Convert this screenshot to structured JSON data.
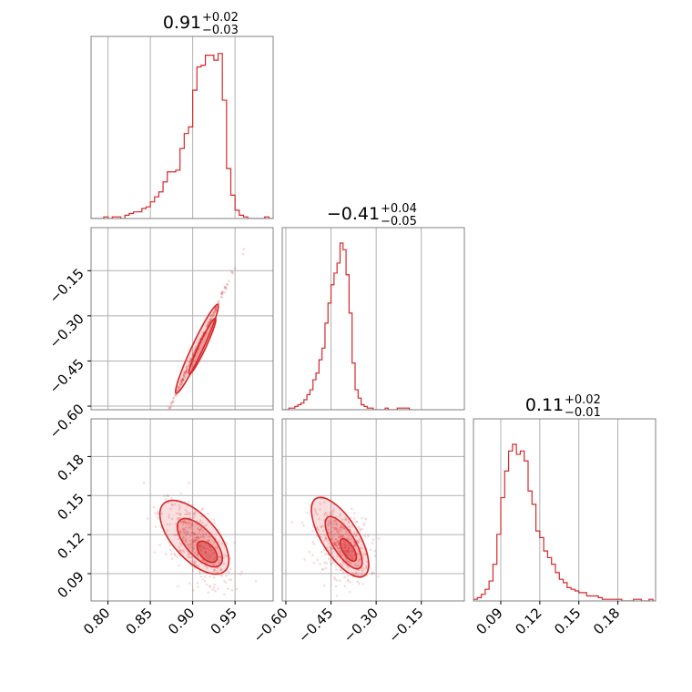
{
  "colors": {
    "accent": "#d62728",
    "grid": "#b0b0b0",
    "frame": "#808080",
    "text": "#000000"
  },
  "chart_data": {
    "type": "corner",
    "parameters": [
      {
        "title_value": "0.91",
        "title_plus": "+0.02",
        "title_minus": "−0.03"
      },
      {
        "title_value": "−0.41",
        "title_plus": "+0.04",
        "title_minus": "−0.05"
      },
      {
        "title_value": "0.11",
        "title_plus": "+0.02",
        "title_minus": "−0.01"
      }
    ],
    "axes": {
      "p0": {
        "range": [
          0.78,
          0.995
        ],
        "ticks": [
          "0.80",
          "0.85",
          "0.90",
          "0.95"
        ],
        "tick_values": [
          0.8,
          0.85,
          0.9,
          0.95
        ]
      },
      "p1": {
        "range": [
          -0.612,
          -0.007
        ],
        "ticks": [
          "−0.60",
          "−0.45",
          "−0.30",
          "−0.15"
        ],
        "tick_values": [
          -0.6,
          -0.45,
          -0.3,
          -0.15
        ]
      },
      "p2": {
        "range": [
          0.069,
          0.209
        ],
        "ticks": [
          "0.09",
          "0.12",
          "0.15",
          "0.18"
        ],
        "tick_values": [
          0.09,
          0.12,
          0.15,
          0.18
        ]
      }
    },
    "grid": true,
    "hist_p0": {
      "edges": [
        0.78,
        0.785,
        0.79,
        0.795,
        0.8,
        0.805,
        0.81,
        0.815,
        0.82,
        0.825,
        0.83,
        0.835,
        0.84,
        0.845,
        0.85,
        0.855,
        0.86,
        0.865,
        0.87,
        0.875,
        0.88,
        0.885,
        0.89,
        0.895,
        0.9,
        0.905,
        0.91,
        0.915,
        0.92,
        0.925,
        0.93,
        0.935,
        0.94,
        0.945,
        0.95,
        0.955,
        0.96,
        0.965,
        0.97,
        0.975,
        0.98,
        0.985,
        0.99,
        0.995
      ],
      "counts": [
        0,
        0,
        0,
        1,
        0,
        1,
        1,
        0,
        2,
        3,
        4,
        4,
        6,
        7,
        10,
        13,
        16,
        22,
        28,
        28,
        29,
        42,
        51,
        55,
        77,
        91,
        92,
        98,
        98,
        95,
        99,
        71,
        30,
        14,
        5,
        2,
        1,
        0,
        0,
        0,
        0,
        1,
        0
      ],
      "max": 100
    },
    "hist_p1": {
      "edges": [
        -0.61,
        -0.6,
        -0.59,
        -0.58,
        -0.57,
        -0.56,
        -0.55,
        -0.54,
        -0.53,
        -0.52,
        -0.51,
        -0.5,
        -0.49,
        -0.48,
        -0.47,
        -0.46,
        -0.45,
        -0.44,
        -0.43,
        -0.42,
        -0.41,
        -0.4,
        -0.39,
        -0.38,
        -0.37,
        -0.36,
        -0.35,
        -0.34,
        -0.33,
        -0.32,
        -0.31,
        -0.3,
        -0.29,
        -0.28,
        -0.27,
        -0.26,
        -0.25,
        -0.24,
        -0.23,
        -0.22,
        -0.21,
        -0.2,
        -0.19,
        -0.18
      ],
      "counts": [
        0,
        0,
        1,
        1,
        2,
        3,
        4,
        6,
        9,
        12,
        18,
        22,
        30,
        37,
        52,
        64,
        75,
        82,
        88,
        100,
        96,
        81,
        58,
        28,
        12,
        7,
        3,
        2,
        1,
        1,
        0,
        0,
        0,
        0,
        1,
        0,
        0,
        0,
        1,
        1,
        1,
        1,
        0
      ],
      "max": 100
    },
    "hist_p2": {
      "edges": [
        0.069,
        0.072,
        0.075,
        0.078,
        0.081,
        0.084,
        0.087,
        0.09,
        0.093,
        0.096,
        0.099,
        0.102,
        0.105,
        0.108,
        0.111,
        0.114,
        0.117,
        0.12,
        0.123,
        0.126,
        0.129,
        0.132,
        0.135,
        0.138,
        0.141,
        0.144,
        0.147,
        0.15,
        0.153,
        0.156,
        0.159,
        0.162,
        0.165,
        0.168,
        0.171,
        0.174,
        0.177,
        0.18,
        0.183,
        0.186,
        0.189,
        0.192,
        0.195,
        0.198,
        0.201,
        0.204,
        0.207
      ],
      "counts": [
        1,
        2,
        4,
        7,
        12,
        22,
        40,
        62,
        78,
        90,
        94,
        88,
        90,
        84,
        66,
        58,
        42,
        38,
        30,
        26,
        22,
        17,
        13,
        11,
        8,
        7,
        6,
        5,
        5,
        3,
        3,
        3,
        2,
        1,
        1,
        1,
        1,
        1,
        0,
        0,
        0,
        1,
        1,
        0,
        0,
        1
      ],
      "max": 100
    },
    "corr_p0_p1": {
      "slope": 6.0,
      "pivot_p0": 0.905,
      "pivot_p1": -0.41,
      "p0_range": [
        0.85,
        0.935
      ]
    },
    "corr_p0_p2": {
      "slope": -0.55,
      "pivot_p0": 0.905,
      "pivot_p2": 0.112
    },
    "corr_p1_p2": {
      "slope": -0.09,
      "pivot_p1": -0.41,
      "pivot_p2": 0.112
    }
  }
}
